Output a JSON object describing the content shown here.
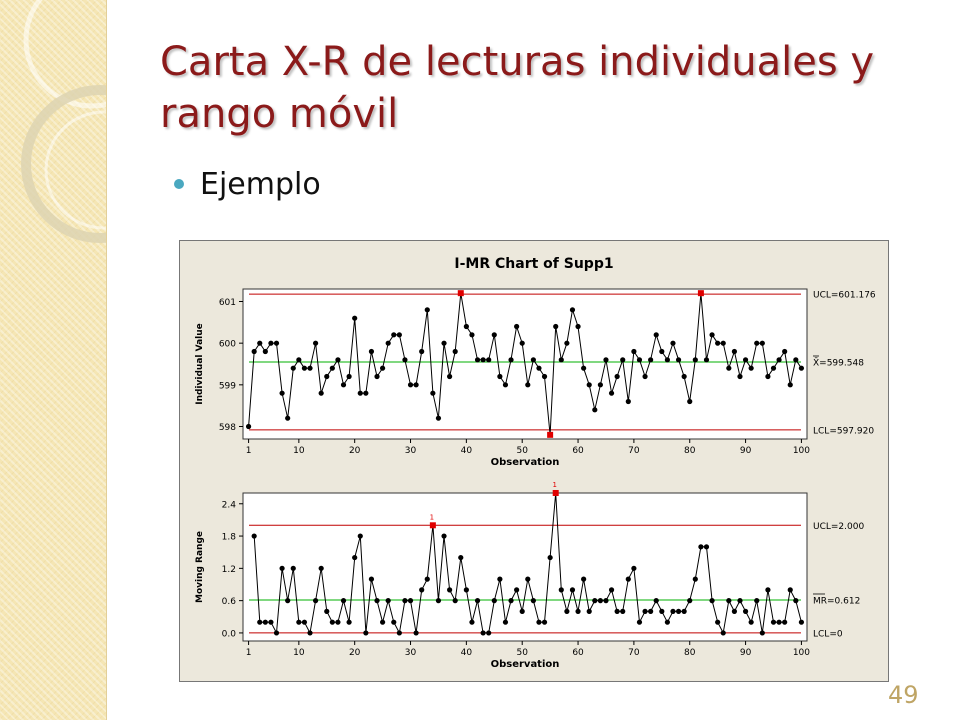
{
  "slide": {
    "title": "Carta X-R de lecturas individuales y rango móvil",
    "bullet": "Ejemplo",
    "page_number": "49"
  },
  "colors": {
    "title": "#8b1a1a",
    "bullet": "#4aa8c0",
    "control_limit": "#c00000",
    "center_line": "#00b000",
    "out_of_control": "#e00000",
    "points": "#000000"
  },
  "chart_data": [
    {
      "type": "line",
      "figure_title": "I-MR Chart of Supp1",
      "title": "",
      "xlabel": "Observation",
      "ylabel": "Individual Value",
      "xlim": [
        0,
        101
      ],
      "ylim": [
        597.7,
        601.3
      ],
      "xticks": [
        1,
        10,
        20,
        30,
        40,
        50,
        60,
        70,
        80,
        90,
        100
      ],
      "yticks": [
        598,
        599,
        600,
        601
      ],
      "ytick_labels": [
        "598",
        "599",
        "600",
        "601"
      ],
      "grid": false,
      "control_lines": [
        {
          "label": "UCL=601.176",
          "value": 601.176,
          "color": "#c00000"
        },
        {
          "label": "X̄=599.548",
          "value": 599.548,
          "color": "#00b000"
        },
        {
          "label": "LCL=597.920",
          "value": 597.92,
          "color": "#c00000"
        }
      ],
      "series": [
        {
          "values": [
            598.0,
            599.8,
            600.0,
            599.8,
            600.0,
            600.0,
            598.8,
            598.2,
            599.4,
            599.6,
            599.4,
            599.4,
            600.0,
            598.8,
            599.2,
            599.4,
            599.6,
            599.0,
            599.2,
            600.6,
            598.8,
            598.8,
            599.8,
            599.2,
            599.4,
            600.0,
            600.2,
            600.2,
            599.6,
            599.0,
            599.0,
            599.8,
            600.8,
            598.8,
            598.2,
            600.0,
            599.2,
            599.8,
            601.2,
            600.4,
            600.2,
            599.6,
            599.6,
            599.6,
            600.2,
            599.2,
            599.0,
            599.6,
            600.4,
            600.0,
            599.0,
            599.6,
            599.4,
            599.2,
            597.8,
            600.4,
            599.6,
            600.0,
            600.8,
            600.4,
            599.4,
            599.0,
            598.4,
            599.0,
            599.6,
            598.8,
            599.2,
            599.6,
            598.6,
            599.8,
            599.6,
            599.2,
            599.6,
            600.2,
            599.8,
            599.6,
            600.0,
            599.6,
            599.2,
            598.6,
            599.6,
            601.2,
            599.6,
            600.2,
            600.0,
            600.0,
            599.4,
            599.8,
            599.2,
            599.6,
            599.4,
            600.0,
            600.0,
            599.2,
            599.4,
            599.6,
            599.8,
            599.0,
            599.6,
            599.4
          ]
        }
      ],
      "flagged_points": [
        39,
        55,
        82
      ]
    },
    {
      "type": "line",
      "title": "",
      "xlabel": "Observation",
      "ylabel": "Moving Range",
      "xlim": [
        0,
        101
      ],
      "ylim": [
        -0.15,
        2.6
      ],
      "xticks": [
        1,
        10,
        20,
        30,
        40,
        50,
        60,
        70,
        80,
        90,
        100
      ],
      "yticks": [
        0.0,
        0.6,
        1.2,
        1.8,
        2.4
      ],
      "ytick_labels": [
        "0.0",
        "0.6",
        "1.2",
        "1.8",
        "2.4"
      ],
      "grid": false,
      "control_lines": [
        {
          "label": "UCL=2.000",
          "value": 2.0,
          "color": "#c00000"
        },
        {
          "label": "MR=0.612",
          "label_bar": "MR",
          "value": 0.612,
          "color": "#00b000"
        },
        {
          "label": "LCL=0",
          "value": 0.0,
          "color": "#c00000"
        }
      ],
      "series": [
        {
          "x_start": 2,
          "values": [
            1.8,
            0.2,
            0.2,
            0.2,
            0.0,
            1.2,
            0.6,
            1.2,
            0.2,
            0.2,
            0.0,
            0.6,
            1.2,
            0.4,
            0.2,
            0.2,
            0.6,
            0.2,
            1.4,
            1.8,
            0.0,
            1.0,
            0.6,
            0.2,
            0.6,
            0.2,
            0.0,
            0.6,
            0.6,
            0.0,
            0.8,
            1.0,
            2.0,
            0.6,
            1.8,
            0.8,
            0.6,
            1.4,
            0.8,
            0.2,
            0.6,
            0.0,
            0.0,
            0.6,
            1.0,
            0.2,
            0.6,
            0.8,
            0.4,
            1.0,
            0.6,
            0.2,
            0.2,
            1.4,
            2.6,
            0.8,
            0.4,
            0.8,
            0.4,
            1.0,
            0.4,
            0.6,
            0.6,
            0.6,
            0.8,
            0.4,
            0.4,
            1.0,
            1.2,
            0.2,
            0.4,
            0.4,
            0.6,
            0.4,
            0.2,
            0.4,
            0.4,
            0.4,
            0.6,
            1.0,
            1.6,
            1.6,
            0.6,
            0.2,
            0.0,
            0.6,
            0.4,
            0.6,
            0.4,
            0.2,
            0.6,
            0.0,
            0.8,
            0.2,
            0.2,
            0.2,
            0.8,
            0.6,
            0.2
          ]
        }
      ],
      "flagged_points": [
        34,
        56
      ],
      "flag_label": "1"
    }
  ]
}
